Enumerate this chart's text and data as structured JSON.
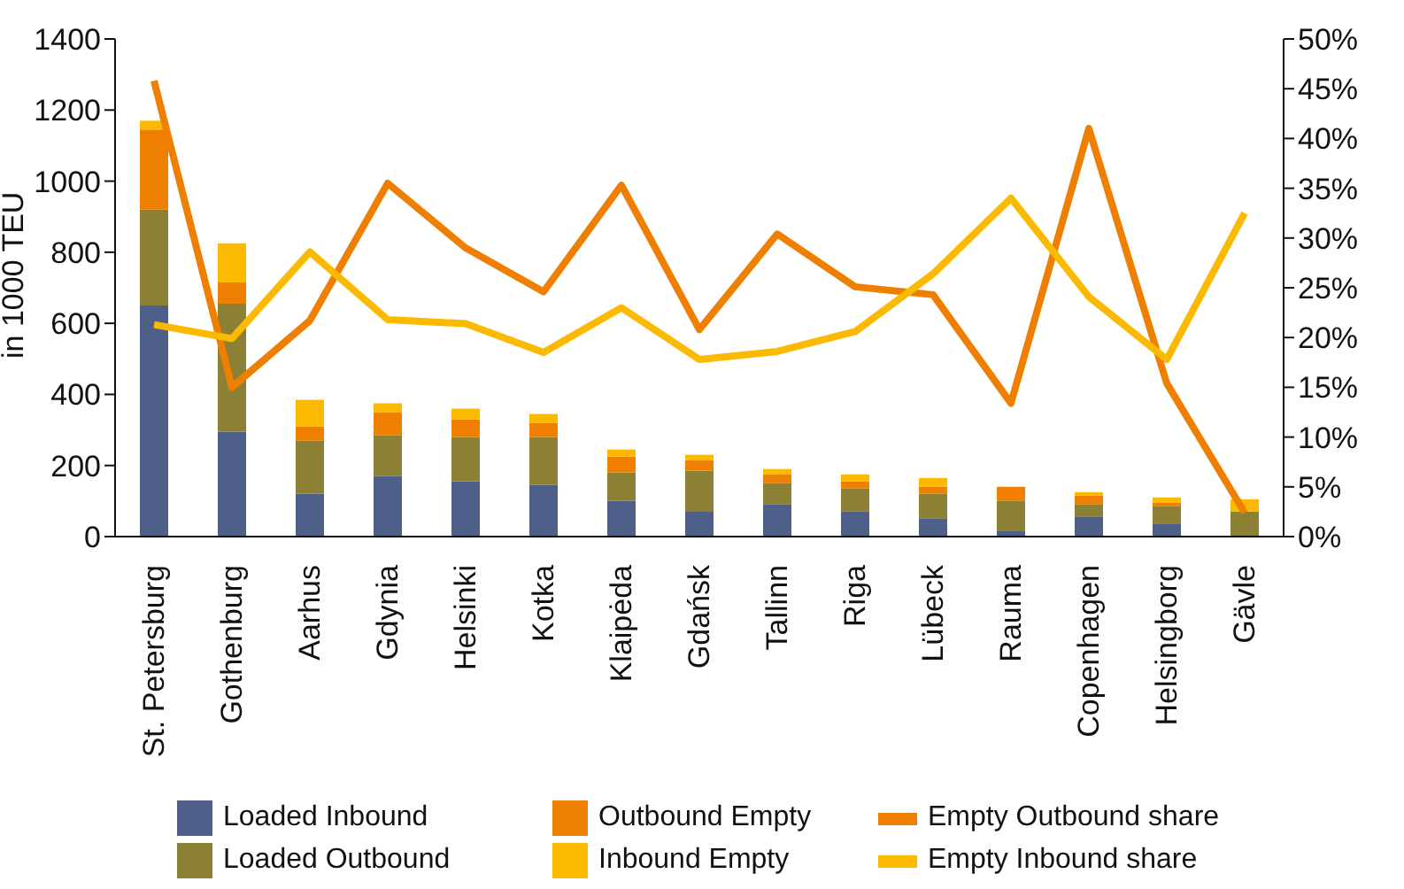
{
  "chart_data": {
    "type": "bar",
    "ylabel": "in 1000 TEU",
    "stacked": true,
    "legend": "bottom",
    "marker": "none",
    "line_style": "solid",
    "categories": [
      "St. Petersburg",
      "Gothenburg",
      "Aarhus",
      "Gdynia",
      "Helsinki",
      "Kotka",
      "Klaipėda",
      "Gdańsk",
      "Tallinn",
      "Riga",
      "Lübeck",
      "Rauma",
      "Copenhagen",
      "Helsingborg",
      "Gävle"
    ],
    "ylim": [
      0,
      1400
    ],
    "yticks": [
      0,
      200,
      400,
      600,
      800,
      1000,
      1200,
      1400
    ],
    "y2lim": [
      0,
      50
    ],
    "y2ticks": [
      {
        "value": 0,
        "label": "0%"
      },
      {
        "value": 5,
        "label": "5%"
      },
      {
        "value": 10,
        "label": "10%"
      },
      {
        "value": 15,
        "label": "15%"
      },
      {
        "value": 20,
        "label": "20%"
      },
      {
        "value": 25,
        "label": "25%"
      },
      {
        "value": 30,
        "label": "30%"
      },
      {
        "value": 35,
        "label": "35%"
      },
      {
        "value": 40,
        "label": "40%"
      },
      {
        "value": 45,
        "label": "45%"
      },
      {
        "value": 50,
        "label": "50%"
      }
    ],
    "series": [
      {
        "name": "Loaded Inbound",
        "color": "#4e6089",
        "values": [
          650,
          295,
          120,
          170,
          155,
          145,
          100,
          70,
          90,
          70,
          50,
          15,
          55,
          35,
          0
        ]
      },
      {
        "name": "Loaded Outbound",
        "color": "#8b8033",
        "values": [
          270,
          360,
          150,
          115,
          125,
          135,
          80,
          115,
          60,
          65,
          70,
          85,
          35,
          50,
          70
        ]
      },
      {
        "name": "Outbound Empty",
        "color": "#ef7f00",
        "values": [
          225,
          60,
          40,
          65,
          50,
          40,
          45,
          30,
          25,
          20,
          20,
          40,
          25,
          10,
          0
        ]
      },
      {
        "name": "Inbound Empty",
        "color": "#fbb900",
        "values": [
          25,
          110,
          75,
          25,
          30,
          25,
          20,
          15,
          15,
          20,
          25,
          0,
          10,
          15,
          35
        ]
      },
      {
        "name": "Empty Outbound share",
        "type": "line",
        "axis": "y2",
        "color": "#ef7f00",
        "values": [
          45.8,
          15.0,
          21.7,
          35.5,
          29.0,
          24.6,
          35.3,
          20.8,
          30.4,
          25.1,
          24.3,
          13.4,
          41.0,
          15.4,
          2.4
        ]
      },
      {
        "name": "Empty Inbound share",
        "type": "line",
        "axis": "y2",
        "color": "#fbb900",
        "values": [
          21.3,
          19.9,
          28.6,
          21.8,
          21.4,
          18.5,
          23.0,
          17.8,
          18.6,
          20.6,
          26.4,
          34.0,
          24.1,
          17.8,
          32.5
        ]
      }
    ]
  }
}
